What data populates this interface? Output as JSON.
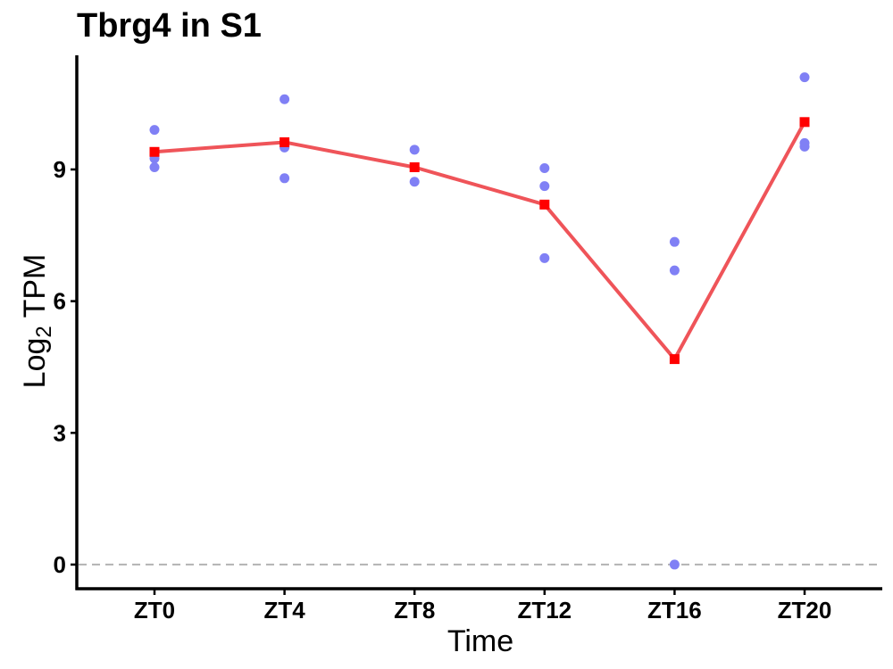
{
  "chart_data": {
    "type": "line",
    "title": "Tbrg4 in S1",
    "xlabel": "Time",
    "ylabel_main": "Log",
    "ylabel_sub": "2",
    "ylabel_tail": " TPM",
    "categories": [
      "ZT0",
      "ZT4",
      "ZT8",
      "ZT12",
      "ZT16",
      "ZT20"
    ],
    "y_ticks": [
      0,
      3,
      6,
      9
    ],
    "y_tick_labels": [
      "0",
      "3",
      "6",
      "9"
    ],
    "ylim": [
      -0.55,
      11.6
    ],
    "reference_line_y": 0,
    "grid": false,
    "legend": "none",
    "series": [
      {
        "kind": "mean-line",
        "color": "#ef5459",
        "marker_color": "#ff0000",
        "values": [
          9.4,
          9.62,
          9.05,
          8.2,
          4.68,
          10.08
        ]
      },
      {
        "kind": "replicates",
        "color": "#8080f5",
        "points": [
          {
            "x": "ZT0",
            "y": 9.9
          },
          {
            "x": "ZT0",
            "y": 9.25
          },
          {
            "x": "ZT0",
            "y": 9.05
          },
          {
            "x": "ZT4",
            "y": 10.6
          },
          {
            "x": "ZT4",
            "y": 9.5
          },
          {
            "x": "ZT4",
            "y": 8.8
          },
          {
            "x": "ZT8",
            "y": 9.45
          },
          {
            "x": "ZT8",
            "y": 8.72
          },
          {
            "x": "ZT12",
            "y": 9.03
          },
          {
            "x": "ZT12",
            "y": 8.62
          },
          {
            "x": "ZT12",
            "y": 6.98
          },
          {
            "x": "ZT16",
            "y": 7.35
          },
          {
            "x": "ZT16",
            "y": 6.7
          },
          {
            "x": "ZT16",
            "y": 0.0
          },
          {
            "x": "ZT20",
            "y": 11.1
          },
          {
            "x": "ZT20",
            "y": 9.6
          },
          {
            "x": "ZT20",
            "y": 9.52
          }
        ]
      }
    ]
  }
}
